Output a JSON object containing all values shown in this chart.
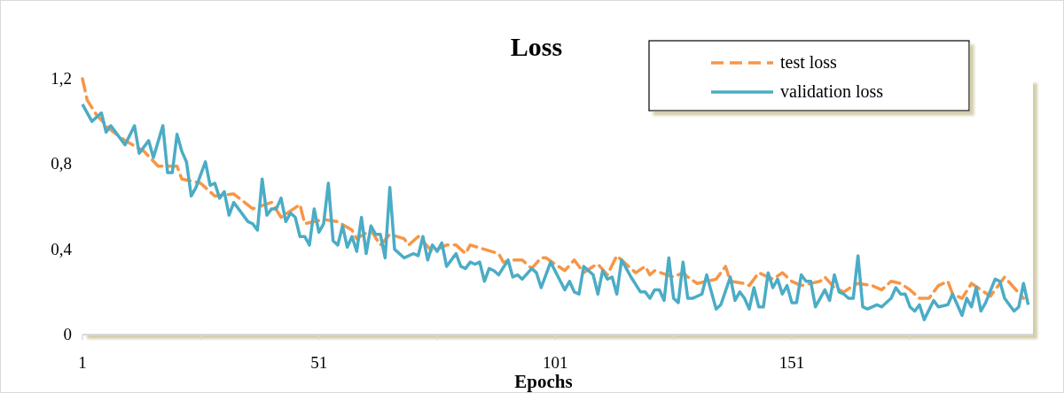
{
  "chart_data": {
    "type": "line",
    "title": "Loss",
    "xlabel": "Epochs",
    "xlim": [
      1,
      202
    ],
    "xticks": [
      1,
      {
        "value": 26,
        "label": null
      },
      51,
      {
        "value": 76,
        "label": null
      },
      101,
      {
        "value": 126,
        "label": null
      },
      151,
      {
        "value": 176,
        "label": null
      }
    ],
    "ylim": [
      0,
      1.2
    ],
    "yticks": [
      0,
      {
        "value": 0.4,
        "label": "0,4"
      },
      {
        "value": 0.8,
        "label": "0,8"
      },
      {
        "value": 1.2,
        "label": "1,2"
      }
    ],
    "grid": false,
    "legend": "top right",
    "marker": "none",
    "series": [
      {
        "name": "test loss",
        "color": "#f79646",
        "line_style": "dashed",
        "x": [
          1,
          2,
          4,
          7,
          10,
          14,
          17,
          21,
          22,
          26,
          29,
          33,
          37,
          41,
          43,
          47,
          48,
          52,
          55,
          58,
          59,
          62,
          64,
          66,
          69,
          70,
          72,
          75,
          78,
          80,
          82,
          83,
          86,
          89,
          90,
          92,
          94,
          96,
          98,
          99,
          103,
          105,
          107,
          109,
          110,
          112,
          114,
          116,
          118,
          120,
          121,
          122,
          126,
          128,
          129,
          131,
          133,
          135,
          137,
          138,
          141,
          142,
          144,
          147,
          149,
          151,
          153,
          157,
          158,
          160,
          162,
          164,
          165,
          168,
          170,
          172,
          174,
          176,
          178,
          180,
          182,
          184,
          185,
          187,
          189,
          191,
          193,
          196,
          198,
          200
        ],
        "values": [
          1.2,
          1.1,
          1.03,
          0.96,
          0.91,
          0.86,
          0.79,
          0.79,
          0.73,
          0.71,
          0.65,
          0.66,
          0.59,
          0.62,
          0.55,
          0.61,
          0.52,
          0.54,
          0.53,
          0.49,
          0.45,
          0.49,
          0.42,
          0.47,
          0.45,
          0.42,
          0.46,
          0.39,
          0.42,
          0.42,
          0.38,
          0.42,
          0.4,
          0.38,
          0.34,
          0.35,
          0.35,
          0.31,
          0.36,
          0.36,
          0.3,
          0.35,
          0.29,
          0.32,
          0.33,
          0.28,
          0.37,
          0.33,
          0.29,
          0.32,
          0.28,
          0.3,
          0.27,
          0.29,
          0.27,
          0.24,
          0.25,
          0.26,
          0.32,
          0.25,
          0.24,
          0.23,
          0.29,
          0.26,
          0.29,
          0.25,
          0.23,
          0.25,
          0.27,
          0.22,
          0.2,
          0.23,
          0.24,
          0.23,
          0.21,
          0.25,
          0.24,
          0.21,
          0.17,
          0.17,
          0.23,
          0.25,
          0.19,
          0.17,
          0.24,
          0.21,
          0.18,
          0.27,
          0.22,
          0.17
        ]
      },
      {
        "name": "validation loss",
        "color": "#4bacc6",
        "line_style": "solid",
        "x": [
          1,
          3,
          5,
          6,
          7,
          10,
          12,
          13,
          15,
          16,
          18,
          19,
          20,
          21,
          22,
          23,
          24,
          25,
          27,
          28,
          29,
          30,
          31,
          32,
          33,
          36,
          37,
          38,
          39,
          40,
          41,
          42,
          43,
          44,
          45,
          46,
          47,
          48,
          49,
          50,
          51,
          52,
          53,
          54,
          55,
          56,
          57,
          58,
          59,
          60,
          61,
          62,
          63,
          64,
          65,
          66,
          67,
          69,
          71,
          72,
          73,
          74,
          75,
          76,
          77,
          78,
          80,
          81,
          82,
          83,
          84,
          85,
          86,
          87,
          88,
          89,
          91,
          92,
          93,
          94,
          96,
          97,
          98,
          100,
          103,
          104,
          105,
          106,
          107,
          109,
          110,
          111,
          112,
          113,
          114,
          115,
          117,
          119,
          120,
          121,
          122,
          123,
          124,
          125,
          126,
          127,
          128,
          129,
          130,
          132,
          133,
          135,
          136,
          138,
          139,
          140,
          141,
          142,
          143,
          144,
          145,
          146,
          147,
          148,
          149,
          150,
          151,
          152,
          153,
          154,
          155,
          156,
          157,
          158,
          159,
          160,
          161,
          162,
          163,
          164,
          165,
          166,
          167,
          169,
          170,
          172,
          173,
          174,
          175,
          176,
          177,
          178,
          179,
          181,
          182,
          184,
          185,
          187,
          188,
          189,
          190,
          191,
          192,
          194,
          195,
          196,
          198,
          199,
          200,
          201
        ],
        "values": [
          1.08,
          1.0,
          1.04,
          0.95,
          0.98,
          0.89,
          0.98,
          0.85,
          0.91,
          0.83,
          0.98,
          0.76,
          0.76,
          0.94,
          0.86,
          0.81,
          0.65,
          0.69,
          0.81,
          0.7,
          0.71,
          0.64,
          0.67,
          0.56,
          0.62,
          0.53,
          0.52,
          0.49,
          0.73,
          0.56,
          0.59,
          0.59,
          0.64,
          0.53,
          0.57,
          0.55,
          0.46,
          0.46,
          0.42,
          0.59,
          0.48,
          0.52,
          0.71,
          0.44,
          0.42,
          0.51,
          0.41,
          0.46,
          0.39,
          0.55,
          0.38,
          0.51,
          0.47,
          0.47,
          0.36,
          0.69,
          0.4,
          0.36,
          0.38,
          0.37,
          0.46,
          0.35,
          0.42,
          0.39,
          0.43,
          0.32,
          0.38,
          0.32,
          0.31,
          0.34,
          0.33,
          0.34,
          0.25,
          0.31,
          0.3,
          0.28,
          0.35,
          0.27,
          0.28,
          0.26,
          0.31,
          0.29,
          0.22,
          0.34,
          0.21,
          0.25,
          0.2,
          0.19,
          0.32,
          0.28,
          0.19,
          0.3,
          0.26,
          0.27,
          0.19,
          0.35,
          0.27,
          0.2,
          0.2,
          0.17,
          0.21,
          0.21,
          0.16,
          0.36,
          0.17,
          0.15,
          0.34,
          0.17,
          0.17,
          0.19,
          0.28,
          0.12,
          0.14,
          0.27,
          0.16,
          0.2,
          0.17,
          0.12,
          0.22,
          0.13,
          0.13,
          0.29,
          0.22,
          0.26,
          0.19,
          0.23,
          0.15,
          0.15,
          0.28,
          0.25,
          0.25,
          0.13,
          0.17,
          0.21,
          0.16,
          0.28,
          0.2,
          0.19,
          0.17,
          0.17,
          0.37,
          0.13,
          0.12,
          0.14,
          0.13,
          0.17,
          0.22,
          0.19,
          0.19,
          0.13,
          0.11,
          0.14,
          0.07,
          0.16,
          0.13,
          0.14,
          0.19,
          0.09,
          0.17,
          0.13,
          0.22,
          0.11,
          0.15,
          0.26,
          0.25,
          0.17,
          0.11,
          0.13,
          0.24,
          0.14
        ]
      }
    ]
  }
}
